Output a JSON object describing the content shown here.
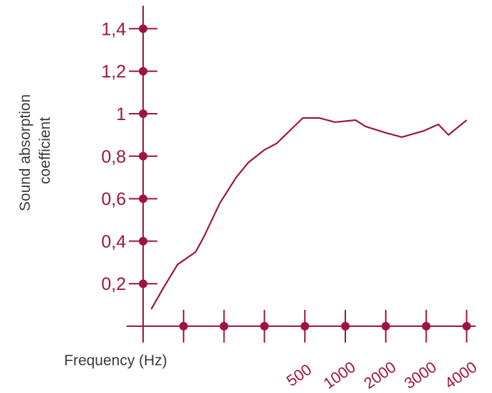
{
  "chart_data": {
    "type": "line",
    "title": "",
    "xlabel": "Frequency (Hz)",
    "ylabel_lines": [
      "Sound absorption",
      "coefficient"
    ],
    "y_ticks": [
      "0,2",
      "0,4",
      "0,6",
      "0,8",
      "1",
      "1,2",
      "1,4"
    ],
    "y_tick_values": [
      0.2,
      0.4,
      0.6,
      0.8,
      1.0,
      1.2,
      1.4
    ],
    "x_tick_labels": [
      "",
      "",
      "",
      "500",
      "1000",
      "2000",
      "3000",
      "4000"
    ],
    "ylim": [
      -0.2,
      1.4
    ],
    "x_scale_note": "tick index (unlabeled ticks shown as markers only)",
    "xlim": [
      0,
      8
    ],
    "grid": false,
    "series": [
      {
        "x": [
          0.2,
          0.5,
          0.85,
          1.3,
          1.5,
          1.9,
          2.3,
          2.6,
          3.0,
          3.3,
          3.95,
          4.35,
          4.75,
          5.25,
          5.5,
          6.0,
          6.4,
          6.95,
          7.3,
          7.55,
          8.0
        ],
        "y": [
          0.08,
          0.18,
          0.29,
          0.35,
          0.42,
          0.58,
          0.7,
          0.77,
          0.83,
          0.86,
          0.98,
          0.98,
          0.96,
          0.97,
          0.94,
          0.91,
          0.89,
          0.92,
          0.95,
          0.9,
          0.97
        ]
      }
    ],
    "colors": {
      "accent": "#9e1441",
      "text": "#3a3a3a"
    }
  }
}
